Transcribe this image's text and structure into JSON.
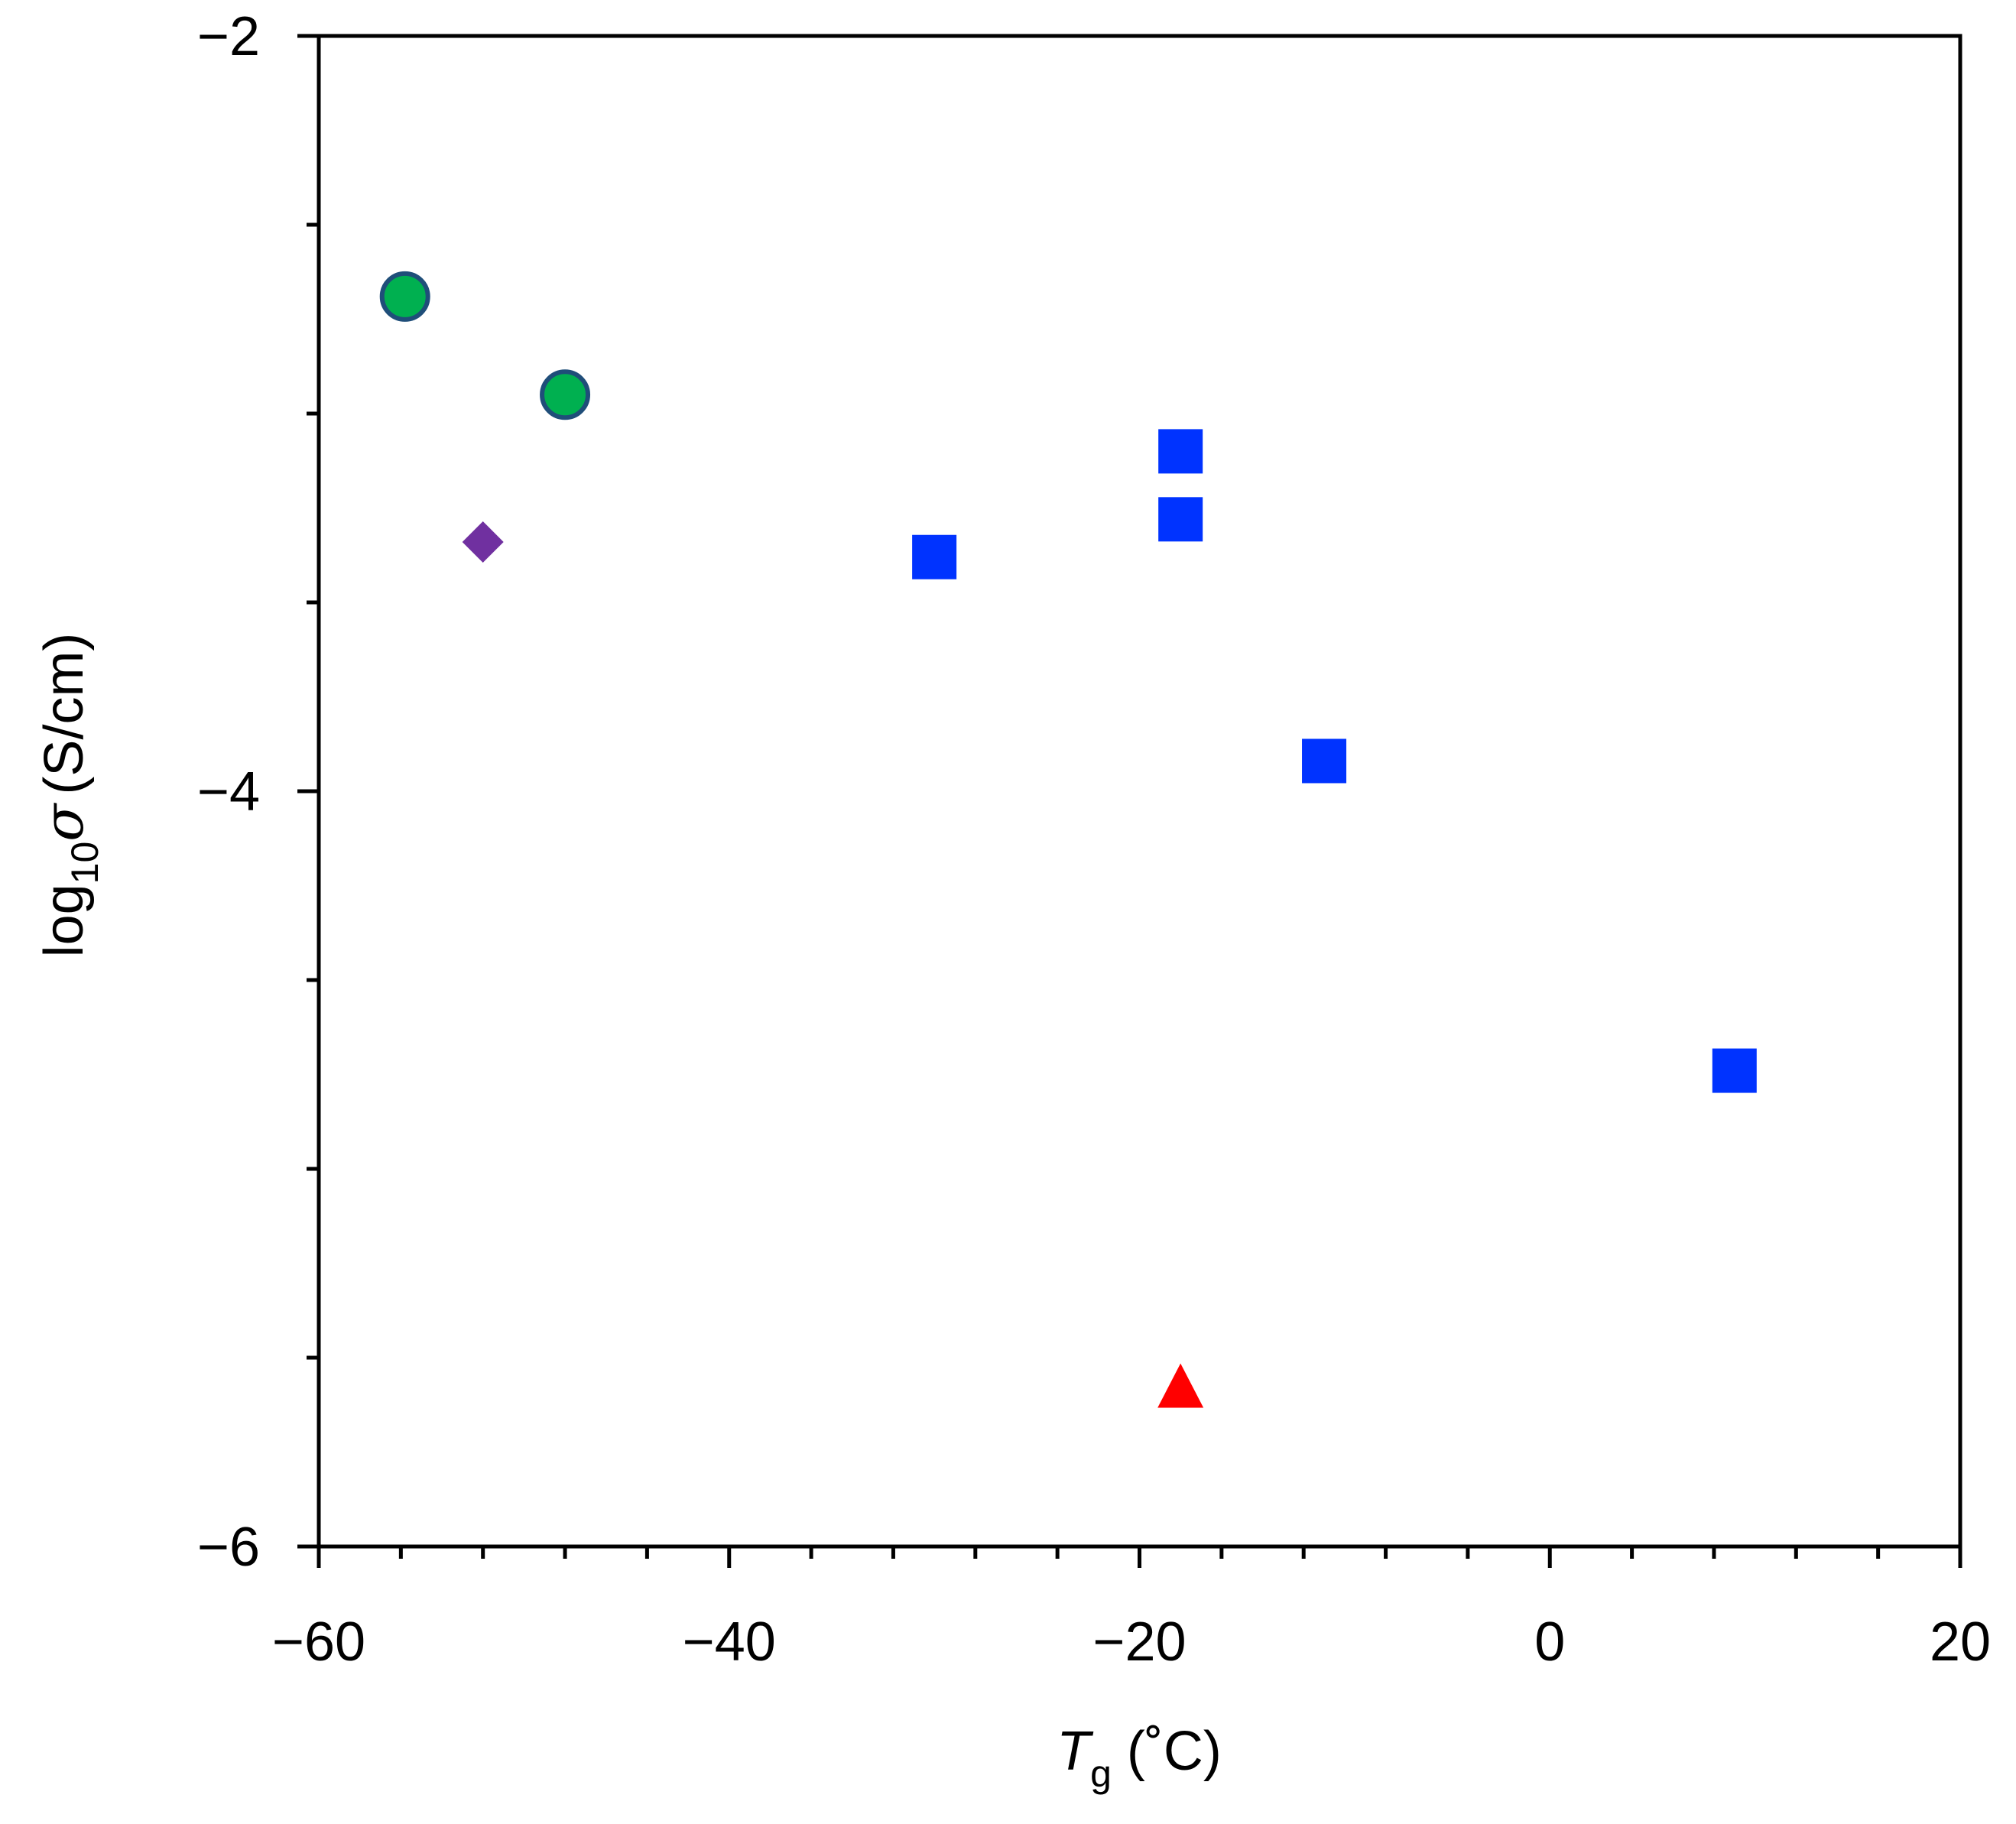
{
  "chart_data": {
    "type": "scatter",
    "xlim": [
      -60,
      20
    ],
    "ylim": [
      -6,
      -2
    ],
    "x_major_ticks": [
      -60,
      -40,
      -20,
      0,
      20
    ],
    "x_minor_step": 4,
    "y_major_ticks": [
      -6,
      -4,
      -2
    ],
    "y_minor_step": 0.5,
    "x_tick_labels": [
      "−60",
      "−40",
      "−20",
      "0",
      "20"
    ],
    "y_tick_labels": [
      "−6",
      "−4",
      "−2"
    ],
    "xlabel": {
      "main": "T",
      "sub": "g",
      "unit": "(˚C)"
    },
    "ylabel": {
      "prefix": "log",
      "sub": "10",
      "symbol": "σ",
      "unit": "(S/cm)"
    },
    "grid": false,
    "series": [
      {
        "marker": "circle",
        "color": "#00b050",
        "edge_color": "#1f4e79",
        "points": [
          [
            -55.8,
            -2.69
          ],
          [
            -48.0,
            -2.95
          ]
        ]
      },
      {
        "marker": "diamond",
        "color": "#7030a0",
        "points": [
          [
            -52.0,
            -3.34
          ]
        ]
      },
      {
        "marker": "square",
        "color": "#0033ff",
        "points": [
          [
            -30.0,
            -3.38
          ],
          [
            -18.0,
            -3.1
          ],
          [
            -18.0,
            -3.28
          ],
          [
            -11.0,
            -3.92
          ],
          [
            9.0,
            -4.74
          ]
        ]
      },
      {
        "marker": "triangle",
        "color": "#ff0000",
        "points": [
          [
            -18.0,
            -5.58
          ]
        ]
      }
    ]
  }
}
